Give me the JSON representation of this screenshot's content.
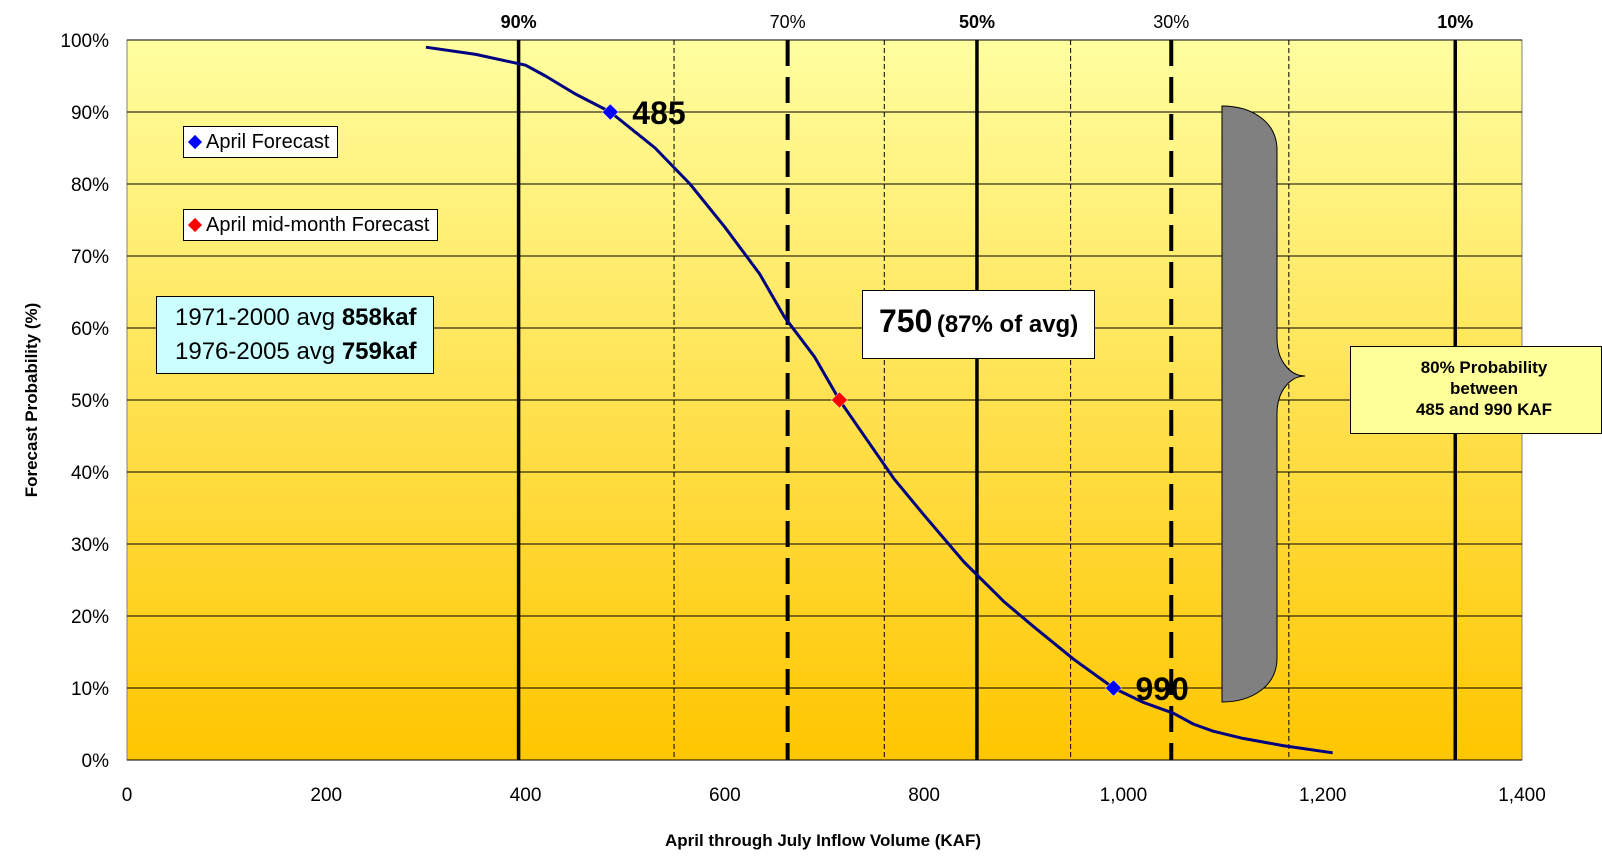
{
  "chart_data": {
    "type": "line",
    "xlabel": "April through July Inflow Volume (KAF)",
    "ylabel": "Forecast Probability (%)",
    "xlim": [
      0,
      1400
    ],
    "ylim": [
      0,
      100
    ],
    "x_ticks": [
      "0",
      "200",
      "400",
      "600",
      "800",
      "1,000",
      "1,200",
      "1,400"
    ],
    "y_ticks": [
      "0%",
      "10%",
      "20%",
      "30%",
      "40%",
      "50%",
      "60%",
      "70%",
      "80%",
      "90%",
      "100%"
    ],
    "grid": "horizontal",
    "series": [
      {
        "type": "line",
        "color": "#000080",
        "x": [
          300,
          350,
          400,
          420,
          450,
          485,
          530,
          565,
          600,
          635,
          660,
          690,
          715,
          745,
          770,
          800,
          840,
          880,
          910,
          950,
          990,
          1020,
          1050,
          1070,
          1090,
          1120,
          1160,
          1210
        ],
        "y": [
          99,
          98,
          96.5,
          95,
          92.5,
          90,
          85,
          80,
          74,
          67.5,
          61.5,
          56,
          50,
          44,
          39,
          34,
          27.5,
          22,
          18.5,
          14,
          10,
          8,
          6.5,
          5,
          4,
          3,
          2,
          1
        ]
      },
      {
        "name": "April Forecast",
        "type": "points",
        "marker": "diamond",
        "color": "#0000ff",
        "x": [
          485,
          990
        ],
        "y": [
          90,
          10
        ]
      },
      {
        "name": "April mid-month Forecast",
        "type": "points",
        "marker": "diamond",
        "color": "#ff0000",
        "x": [
          715
        ],
        "y": [
          50
        ]
      }
    ],
    "vertical_lines": [
      {
        "x": 393,
        "style": "solid",
        "label": "90%",
        "label_bold": true
      },
      {
        "x": 549,
        "style": "thin-dashed",
        "label": ""
      },
      {
        "x": 663,
        "style": "thick-dashed",
        "label": "70%",
        "label_bold": false
      },
      {
        "x": 760,
        "style": "thin-dashed",
        "label": ""
      },
      {
        "x": 853,
        "style": "solid",
        "label": "50%",
        "label_bold": true
      },
      {
        "x": 947,
        "style": "thin-dashed",
        "label": ""
      },
      {
        "x": 1048,
        "style": "thick-dashed",
        "label": "30%",
        "label_bold": false
      },
      {
        "x": 1166,
        "style": "thin-dashed",
        "label": ""
      },
      {
        "x": 1333,
        "style": "solid",
        "label": "10%",
        "label_bold": true
      }
    ],
    "point_labels": [
      {
        "x": 485,
        "y": 90,
        "text": "485"
      },
      {
        "x": 990,
        "y": 10,
        "text": "990"
      }
    ],
    "background": {
      "top": "#fffea0",
      "bottom": "#ffc600"
    }
  },
  "legend": {
    "april_forecast": "April Forecast",
    "april_mid_month_forecast": "April mid-month Forecast",
    "april_color": "#0000ff",
    "mid_month_color": "#ff0000"
  },
  "averages": {
    "line1_prefix": "1971-2000 avg ",
    "line1_value": "858kaf",
    "line2_prefix": "1976-2005 avg ",
    "line2_value": "759kaf"
  },
  "center_label": {
    "value": "750",
    "pct": "(87% of avg)"
  },
  "probability_box": {
    "line1": "80% Probability",
    "line2": "between",
    "line3": "485 and 990 KAF"
  }
}
